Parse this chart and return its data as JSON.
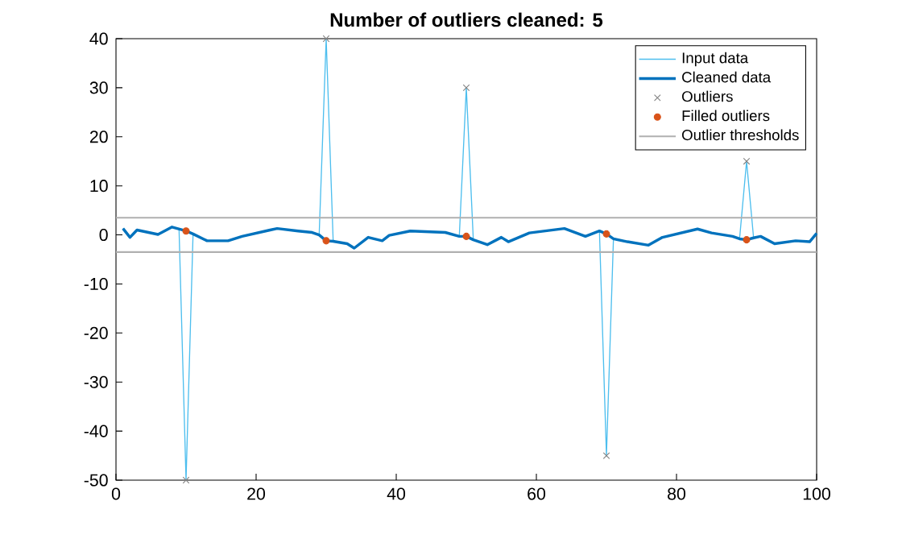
{
  "chart_data": {
    "type": "line",
    "title": "Number of outliers cleaned: 5",
    "xlim": [
      0,
      100
    ],
    "ylim": [
      -50,
      40
    ],
    "xticks": [
      0,
      20,
      40,
      60,
      80,
      100
    ],
    "yticks": [
      -50,
      -40,
      -30,
      -20,
      -10,
      0,
      10,
      20,
      30,
      40
    ],
    "legend": "top right",
    "grid": false,
    "line_style": "solid",
    "series": [
      {
        "name": "Input data",
        "marker": "none",
        "color": "#4dbeee",
        "x": [
          1,
          2,
          3,
          6,
          8,
          9,
          10,
          11,
          13,
          16,
          18,
          22,
          23,
          26,
          28,
          29,
          30,
          31,
          33,
          34,
          36,
          38,
          39,
          42,
          47,
          49,
          50,
          51,
          53,
          55,
          56,
          59,
          64,
          67,
          69,
          70,
          71,
          73,
          76,
          78,
          83,
          85,
          88,
          89,
          90,
          91,
          92,
          94,
          97,
          99,
          100
        ],
        "values": [
          1.3,
          -0.5,
          1.0,
          0.1,
          1.6,
          1.2,
          -50,
          0.2,
          -1.2,
          -1.2,
          -0.3,
          1.0,
          1.3,
          0.8,
          0.5,
          0.0,
          40,
          -1.3,
          -1.8,
          -2.7,
          -0.5,
          -1.2,
          -0.1,
          0.8,
          0.5,
          -0.3,
          30,
          -1.0,
          -2.0,
          -0.5,
          -1.4,
          0.4,
          1.3,
          -0.3,
          0.8,
          -45,
          -0.8,
          -1.4,
          -2.1,
          -0.5,
          1.2,
          0.4,
          -0.3,
          -0.8,
          15,
          -0.6,
          -0.3,
          -1.8,
          -1.2,
          -1.4,
          0.3
        ]
      },
      {
        "name": "Cleaned data",
        "marker": "none",
        "color": "#0072bd",
        "x": [
          1,
          2,
          3,
          6,
          8,
          9,
          10,
          11,
          13,
          16,
          18,
          22,
          23,
          26,
          28,
          29,
          30,
          31,
          33,
          34,
          36,
          38,
          39,
          42,
          47,
          49,
          50,
          51,
          53,
          55,
          56,
          59,
          64,
          67,
          69,
          70,
          71,
          73,
          76,
          78,
          83,
          85,
          88,
          89,
          90,
          91,
          92,
          94,
          97,
          99,
          100
        ],
        "values": [
          1.3,
          -0.5,
          1.0,
          0.1,
          1.6,
          1.2,
          0.8,
          0.2,
          -1.2,
          -1.2,
          -0.3,
          1.0,
          1.3,
          0.8,
          0.5,
          0.0,
          -1.2,
          -1.3,
          -1.8,
          -2.7,
          -0.5,
          -1.2,
          -0.1,
          0.8,
          0.5,
          -0.3,
          -0.3,
          -1.0,
          -2.0,
          -0.5,
          -1.4,
          0.4,
          1.3,
          -0.3,
          0.8,
          0.2,
          -0.8,
          -1.4,
          -2.1,
          -0.5,
          1.2,
          0.4,
          -0.3,
          -0.8,
          -1.0,
          -0.6,
          -0.3,
          -1.8,
          -1.2,
          -1.4,
          0.3
        ]
      },
      {
        "name": "Outliers",
        "type": "scatter",
        "marker": "cross",
        "color": "#808080",
        "x": [
          10,
          30,
          50,
          70,
          90
        ],
        "values": [
          -50,
          40,
          30,
          -45,
          15
        ]
      },
      {
        "name": "Filled outliers",
        "type": "scatter",
        "marker": "circle",
        "color": "#d95319",
        "x": [
          10,
          30,
          50,
          70,
          90
        ],
        "values": [
          0.8,
          -1.2,
          -0.3,
          0.2,
          -1.0
        ]
      },
      {
        "name": "Outlier thresholds",
        "marker": "none",
        "color": "#b0b0b0",
        "x": [
          0,
          100
        ],
        "values": [
          3.5,
          3.5
        ]
      },
      {
        "marker": "none",
        "color": "#b0b0b0",
        "x": [
          0,
          100
        ],
        "values": [
          -3.5,
          -3.5
        ]
      }
    ]
  }
}
